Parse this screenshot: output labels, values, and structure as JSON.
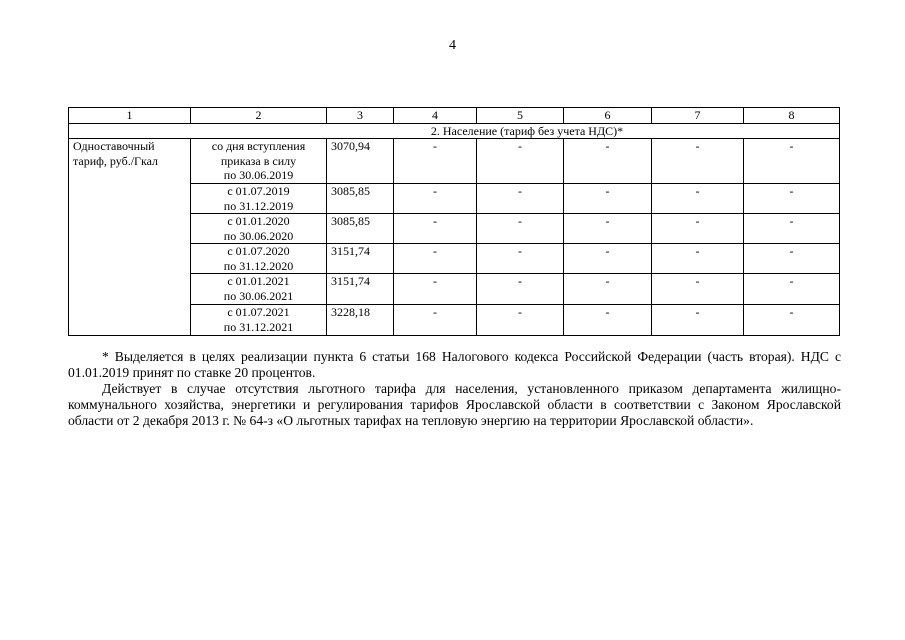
{
  "page_number": "4",
  "table": {
    "header": [
      "1",
      "2",
      "3",
      "4",
      "5",
      "6",
      "7",
      "8"
    ],
    "section_title": "2. Население (тариф без учета НДС)*",
    "row_label": "Одноставочный тариф, руб./Гкал",
    "rows": [
      {
        "period": [
          "со дня вступления",
          "приказа в силу",
          "по 30.06.2019"
        ],
        "value": "3070,94",
        "c4": "-",
        "c5": "-",
        "c6": "-",
        "c7": "-",
        "c8": "-"
      },
      {
        "period": [
          "с 01.07.2019",
          "по 31.12.2019"
        ],
        "value": "3085,85",
        "c4": "-",
        "c5": "-",
        "c6": "-",
        "c7": "-",
        "c8": "-"
      },
      {
        "period": [
          "с 01.01.2020",
          "по 30.06.2020"
        ],
        "value": "3085,85",
        "c4": "-",
        "c5": "-",
        "c6": "-",
        "c7": "-",
        "c8": "-"
      },
      {
        "period": [
          "с 01.07.2020",
          "по 31.12.2020"
        ],
        "value": "3151,74",
        "c4": "-",
        "c5": "-",
        "c6": "-",
        "c7": "-",
        "c8": "-"
      },
      {
        "period": [
          "с 01.01.2021",
          "по 30.06.2021"
        ],
        "value": "3151,74",
        "c4": "-",
        "c5": "-",
        "c6": "-",
        "c7": "-",
        "c8": "-"
      },
      {
        "period": [
          "с 01.07.2021",
          "по 31.12.2021"
        ],
        "value": "3228,18",
        "c4": "-",
        "c5": "-",
        "c6": "-",
        "c7": "-",
        "c8": "-"
      }
    ]
  },
  "notes": [
    "* Выделяется в целях реализации пункта 6 статьи 168 Налогового кодекса Российской Федерации (часть вторая). НДС с 01.01.2019 принят по ставке 20 процентов.",
    "Действует в случае отсутствия льготного тарифа для населения, установленного приказом департамента жилищно-коммунального хозяйства, энергетики и регулирования тарифов Ярославской области в соответствии с Законом Ярославской области от 2 декабря 2013 г. № 64-з «О льготных тарифах на тепловую энергию на территории Ярославской области»."
  ]
}
